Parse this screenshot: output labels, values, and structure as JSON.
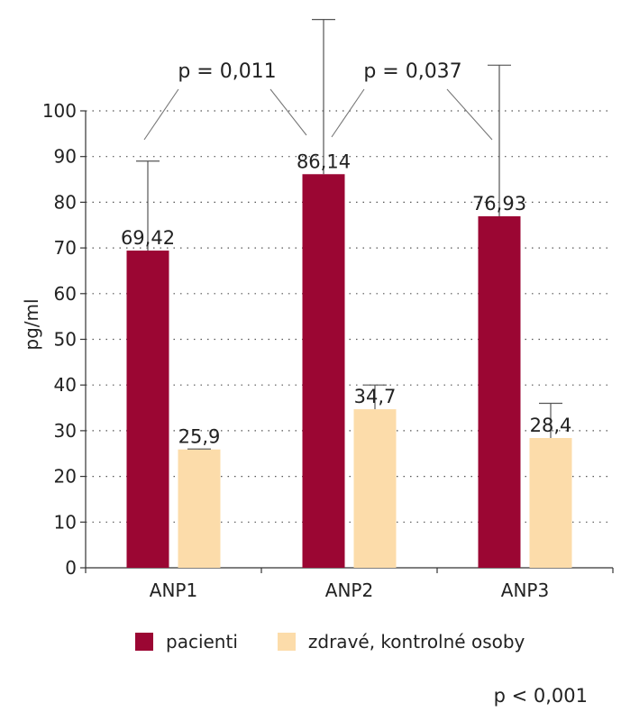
{
  "chart_data": {
    "type": "bar",
    "categories": [
      "ANP1",
      "ANP2",
      "ANP3"
    ],
    "series": [
      {
        "name": "pacienti",
        "color": "#9b0633",
        "values": [
          69.42,
          86.14,
          76.93
        ],
        "labels": [
          "69,42",
          "86,14",
          "76,93"
        ],
        "error_upper": [
          89,
          120,
          110
        ]
      },
      {
        "name": "zdravé, kontrolné osoby",
        "color": "#fcdcaa",
        "values": [
          25.9,
          34.7,
          28.4
        ],
        "labels": [
          "25,9",
          "34,7",
          "28,4"
        ],
        "error_upper": [
          26,
          40,
          36
        ]
      }
    ],
    "ylabel": "pg/ml",
    "xlabel": "",
    "ylim": [
      0,
      100
    ],
    "yticks": [
      0,
      10,
      20,
      30,
      40,
      50,
      60,
      70,
      80,
      90,
      100
    ],
    "grid": "dotted horizontal",
    "legend": "bottom",
    "annotations": [
      {
        "text": "p = 0,011",
        "between": [
          "ANP1",
          "ANP2"
        ]
      },
      {
        "text": "p = 0,037",
        "between": [
          "ANP2",
          "ANP3"
        ]
      }
    ],
    "footnote": "p < 0,001"
  }
}
